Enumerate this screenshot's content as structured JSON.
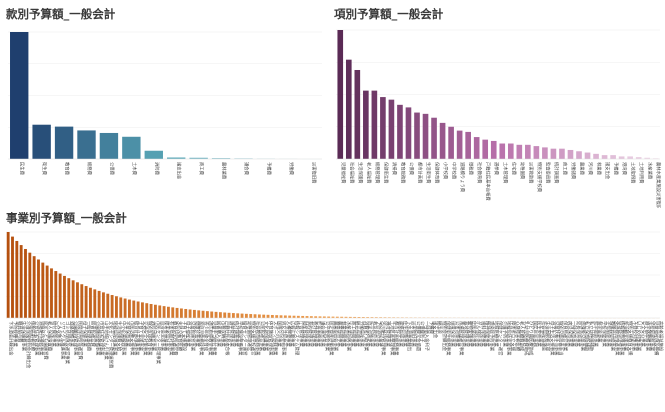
{
  "chart_data": [
    {
      "type": "bar",
      "title": "款別予算額_一般会計",
      "categories": [
        "民生費",
        "衛生費",
        "教育費",
        "総務費",
        "公債費",
        "土木費",
        "消防費",
        "諸支出金",
        "商工費",
        "農林業費",
        "議会費",
        "予備費",
        "労働費",
        "災害復旧費"
      ],
      "values": [
        100,
        27,
        25.5,
        22.5,
        20.5,
        17.5,
        6.5,
        1.2,
        1.0,
        0.7,
        0.5,
        0.3,
        0.2,
        0.1
      ],
      "colors": {
        "start": "#1f3f6e",
        "mid": "#5aa8b8",
        "end": "#e8f2f4"
      },
      "ylim": [
        0,
        100
      ],
      "grid": true,
      "xlabel": "",
      "ylabel": ""
    },
    {
      "type": "bar",
      "title": "項別予算額_一般会計",
      "categories": [
        "児童福祉費",
        "社会福祉費",
        "生活保護費",
        "老人福祉費",
        "総務管理費",
        "保健衛生費",
        "清掃費",
        "教育総務費",
        "公債費",
        "都市計画費",
        "生活衛生費",
        "保健体育費",
        "小学校費",
        "中学校費",
        "道路橋りょう費",
        "徴税費",
        "社会教育費",
        "戸籍住民基本台帳費",
        "選挙費",
        "土木管理費",
        "住宅費",
        "幼稚園費",
        "災害救助費",
        "特別支援学校費",
        "監査委員費",
        "統計調査費",
        "商工費",
        "労働諸費",
        "農業費",
        "河川費",
        "林業費",
        "諸支出金",
        "予備費",
        "港湾費",
        "土地取得費",
        "土地利用費",
        "水産業費",
        "農林水産業施設災害復旧費"
      ],
      "values": [
        100,
        77,
        69,
        53,
        53,
        48,
        46,
        42,
        40,
        36,
        35,
        32,
        28,
        25,
        22,
        21,
        17,
        15,
        14,
        12,
        12,
        11,
        11,
        10,
        9,
        8,
        8,
        7,
        6,
        5,
        4,
        3,
        3,
        2,
        2,
        1.5,
        1,
        0.5
      ],
      "colors": {
        "start": "#5a2a55",
        "mid": "#b970aa",
        "end": "#f0dcea"
      },
      "ylim": [
        0,
        100
      ],
      "grid": true,
      "xlabel": "",
      "ylabel": ""
    },
    {
      "type": "bar",
      "title": "事業別予算額_一般会計",
      "categories": [
        "下水道会計繰出金",
        "予防接種事業",
        "職員給与費",
        "生活保護費事業",
        "介護保険特別会計繰出金",
        "後期高齢者医療",
        "公営住宅管理事業",
        "道路維持補修事業",
        "認定こども園運営費",
        "老人保護措置費",
        "給付費等事業",
        "ごみ収集事業",
        "リサイクル推進事業",
        "ゴミ処理施設運営事業",
        "道路整備事業",
        "公園維持管理事業",
        "民間保育所等運営費",
        "母子保健事業",
        "一般管理事務費",
        "図書館運営費",
        "公園施設整備事業",
        "市営住宅管理事業",
        "山手地域けん引事業",
        "文化センター管理運営費",
        "地域福祉推進事業",
        "生活保護費支給",
        "中小企業融資事業",
        "学童保育事業",
        "市民活動支援事業",
        "総合計画推進事業",
        "子育て支援事業",
        "交通安全対策事業",
        "特別支援教育事業",
        "消防団運営事業",
        "市民センター管理事業",
        "自治会支援事業",
        "障害者福祉事業",
        "有害鳥獣対策事業",
        "教育研究所運営費",
        "未熟児養育医療",
        "子育て支援施設",
        "母子福祉事業",
        "児童館運営事業",
        "健康診査事業",
        "家庭児童相談事業",
        "青少年健全育成",
        "適応指導教室事業",
        "児童手当給付事業",
        "図書購入事業",
        "市税収納事業",
        "戸籍住民基本台帳",
        "選挙管理事業",
        "統計調査事業",
        "学校施設整備事業",
        "給食センター運営",
        "幼稚園管理運営",
        "特別支援学校運営",
        "社会教育総務事業",
        "公民館運営事業",
        "文化財保護事業",
        "体育施設管理事業",
        "スポーツ振興事業",
        "国際交流事業",
        "男女共同参画事業",
        "人権啓発事業",
        "広報広聴事業",
        "情報システム管理",
        "庁舎管理事業",
        "財産管理事業",
        "契約管理事業",
        "会計管理事業",
        "監査事務事業",
        "議会運営事業",
        "公平委員会事業",
        "固定資産評価事業",
        "農業委員会事業",
        "農業振興事業",
        "林業振興事業",
        "水産業振興事業",
        "商工振興事業",
        "観光振興事業",
        "労働福祉事業",
        "消費者行政事業",
        "防災対策事業",
        "救急救命事業",
        "予防消防事業",
        "河川維持管理事業",
        "港湾管理事業",
        "土地区画整理事業",
        "都市計画総務事業",
        "建築指導事業",
        "住宅対策事業",
        "下水道事業繰出",
        "災害復旧事業",
        "公債費元金償還",
        "公債費利子",
        "一時借入金利子",
        "予備費",
        "諸支出金",
        "繰出金",
        "特別会計繰出金",
        "保健衛生総務事業",
        "環境保全事業",
        "公害対策事業",
        "斎場管理運営事業",
        "墓地管理事業",
        "動物愛護事業",
        "住民健診事業",
        "がん検診事業",
        "歯科保健事業",
        "精神保健事業",
        "感染症予防事業",
        "地域医療事業",
        "保健センター運営",
        "介護予防事業",
        "地域包括支援事業",
        "障害者自立支援",
        "心身障害者医療",
        "老人医療費助成",
        "乳幼児医療費助成",
        "ひとり親医療助成",
        "国民年金事務",
        "民生委員事業",
        "社会福祉協議会",
        "生活困窮者支援",
        "母子生活支援事業",
        "児童扶養手当事業",
        "特別児童扶養手当",
        "保育所運営事業",
        "病児保育事業",
        "一時保育事業",
        "延長保育事業",
        "放課後児童事業",
        "私立保育所補助",
        "私立幼稚園補助",
        "就学援助事業",
        "奨学金事業",
        "学校保健事業",
        "学校給食事業",
        "教職員研修事業",
        "英語教育推進事業",
        "情報教育推進事業",
        "部活動支援事業",
        "特別支援教育支援",
        "不登校対策事業",
        "いじめ対策事業",
        "安全安心事業",
        "通学路整備事業",
        "学校図書館事業",
        "児童福祉施設整備",
        "高齢者福祉施設"
      ],
      "decay_rate": 0.055,
      "colors": {
        "start": "#b5500e",
        "mid": "#f0a050",
        "end": "#fbe4c8"
      },
      "ylim": [
        0,
        100
      ],
      "grid": true,
      "xlabel": "",
      "ylabel": ""
    }
  ]
}
